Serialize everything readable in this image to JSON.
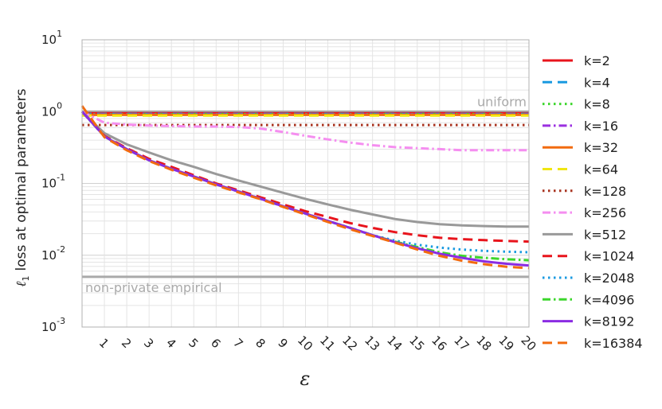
{
  "chart_data": {
    "type": "line",
    "xlabel": "ε",
    "ylabel_math": "ℓ",
    "ylabel_sub": "1",
    "ylabel_text": "loss at optimal parameters",
    "x_ticks": [
      1,
      2,
      3,
      4,
      5,
      6,
      7,
      8,
      9,
      10,
      11,
      12,
      13,
      14,
      15,
      16,
      17,
      18,
      19,
      20
    ],
    "x_range": [
      0,
      20
    ],
    "y_scale": "log",
    "y_range": [
      0.001,
      10
    ],
    "y_ticks": [
      {
        "value": 10,
        "base": "10",
        "exp": "1"
      },
      {
        "value": 1,
        "base": "10",
        "exp": "0"
      },
      {
        "value": 0.1,
        "base": "10",
        "exp": "-1"
      },
      {
        "value": 0.01,
        "base": "10",
        "exp": "-2"
      },
      {
        "value": 0.001,
        "base": "10",
        "exp": "-3"
      }
    ],
    "grid": true,
    "legend_position": "right",
    "reference_lines": [
      {
        "label": "uniform",
        "value": 1.0,
        "color": "#aaaaaa"
      },
      {
        "label": "non-private empirical",
        "value": 0.005,
        "color": "#aaaaaa"
      }
    ],
    "x": [
      0,
      1,
      2,
      3,
      4,
      5,
      6,
      7,
      8,
      9,
      10,
      11,
      12,
      13,
      14,
      15,
      16,
      17,
      18,
      19,
      20
    ],
    "series": [
      {
        "name": "k=2",
        "color": "#e8141c",
        "dash": "solid",
        "values": [
          0.95,
          0.95,
          0.95,
          0.95,
          0.95,
          0.95,
          0.95,
          0.95,
          0.95,
          0.95,
          0.95,
          0.95,
          0.95,
          0.95,
          0.95,
          0.95,
          0.95,
          0.95,
          0.95,
          0.95,
          0.95
        ]
      },
      {
        "name": "k=4",
        "color": "#1a9ae0",
        "dash": "dashed",
        "values": [
          0.93,
          0.93,
          0.93,
          0.93,
          0.93,
          0.93,
          0.93,
          0.93,
          0.93,
          0.93,
          0.93,
          0.93,
          0.93,
          0.93,
          0.93,
          0.93,
          0.93,
          0.93,
          0.93,
          0.93,
          0.93
        ]
      },
      {
        "name": "k=8",
        "color": "#3cd62c",
        "dash": "dotted",
        "values": [
          0.92,
          0.92,
          0.92,
          0.92,
          0.92,
          0.92,
          0.92,
          0.92,
          0.92,
          0.92,
          0.92,
          0.92,
          0.92,
          0.92,
          0.92,
          0.92,
          0.92,
          0.92,
          0.92,
          0.92,
          0.92
        ]
      },
      {
        "name": "k=16",
        "color": "#9b30e0",
        "dash": "dashdot",
        "values": [
          0.91,
          0.91,
          0.91,
          0.91,
          0.91,
          0.91,
          0.91,
          0.91,
          0.91,
          0.91,
          0.91,
          0.91,
          0.91,
          0.91,
          0.91,
          0.91,
          0.91,
          0.91,
          0.91,
          0.91,
          0.91
        ]
      },
      {
        "name": "k=32",
        "color": "#f26b0f",
        "dash": "solid",
        "values": [
          0.9,
          0.9,
          0.9,
          0.9,
          0.9,
          0.9,
          0.9,
          0.9,
          0.9,
          0.9,
          0.9,
          0.9,
          0.9,
          0.9,
          0.9,
          0.9,
          0.9,
          0.9,
          0.9,
          0.9,
          0.9
        ]
      },
      {
        "name": "k=64",
        "color": "#f0e612",
        "dash": "dashed",
        "values": [
          0.88,
          0.88,
          0.88,
          0.88,
          0.88,
          0.88,
          0.88,
          0.88,
          0.88,
          0.88,
          0.88,
          0.88,
          0.88,
          0.88,
          0.88,
          0.88,
          0.88,
          0.88,
          0.88,
          0.88,
          0.88
        ]
      },
      {
        "name": "k=128",
        "color": "#a8321e",
        "dash": "dotted",
        "values": [
          0.65,
          0.65,
          0.65,
          0.65,
          0.65,
          0.65,
          0.65,
          0.65,
          0.65,
          0.65,
          0.65,
          0.65,
          0.65,
          0.65,
          0.65,
          0.65,
          0.65,
          0.65,
          0.65,
          0.65,
          0.65
        ]
      },
      {
        "name": "k=256",
        "color": "#f58ef0",
        "dash": "dashdot",
        "values": [
          1.0,
          0.7,
          0.66,
          0.64,
          0.63,
          0.62,
          0.62,
          0.61,
          0.58,
          0.52,
          0.46,
          0.41,
          0.37,
          0.34,
          0.32,
          0.31,
          0.3,
          0.29,
          0.29,
          0.29,
          0.29
        ]
      },
      {
        "name": "k=512",
        "color": "#999999",
        "dash": "solid",
        "values": [
          1.0,
          0.5,
          0.35,
          0.27,
          0.21,
          0.17,
          0.135,
          0.11,
          0.09,
          0.074,
          0.061,
          0.051,
          0.043,
          0.037,
          0.032,
          0.029,
          0.027,
          0.026,
          0.0255,
          0.025,
          0.025
        ]
      },
      {
        "name": "k=1024",
        "color": "#e8141c",
        "dash": "dashed",
        "values": [
          1.0,
          0.46,
          0.31,
          0.22,
          0.17,
          0.13,
          0.1,
          0.08,
          0.064,
          0.051,
          0.041,
          0.034,
          0.028,
          0.024,
          0.021,
          0.019,
          0.0175,
          0.0167,
          0.0162,
          0.0158,
          0.0155
        ]
      },
      {
        "name": "k=2048",
        "color": "#1a9ae0",
        "dash": "dotted",
        "values": [
          1.0,
          0.45,
          0.3,
          0.21,
          0.16,
          0.125,
          0.097,
          0.077,
          0.061,
          0.048,
          0.038,
          0.03,
          0.024,
          0.019,
          0.016,
          0.014,
          0.0128,
          0.012,
          0.0115,
          0.0112,
          0.011
        ]
      },
      {
        "name": "k=4096",
        "color": "#3cd62c",
        "dash": "dashdot",
        "values": [
          1.0,
          0.45,
          0.3,
          0.21,
          0.16,
          0.125,
          0.097,
          0.077,
          0.061,
          0.048,
          0.038,
          0.03,
          0.024,
          0.019,
          0.0155,
          0.013,
          0.011,
          0.0098,
          0.0092,
          0.0088,
          0.0085
        ]
      },
      {
        "name": "k=8192",
        "color": "#8a2be2",
        "dash": "solid",
        "values": [
          1.0,
          0.45,
          0.3,
          0.21,
          0.16,
          0.125,
          0.097,
          0.077,
          0.061,
          0.048,
          0.038,
          0.03,
          0.024,
          0.019,
          0.0152,
          0.0125,
          0.0105,
          0.0092,
          0.0082,
          0.0076,
          0.0072
        ]
      },
      {
        "name": "k=16384",
        "color": "#f26b0f",
        "dash": "dashed",
        "values": [
          1.2,
          0.44,
          0.29,
          0.205,
          0.155,
          0.12,
          0.094,
          0.075,
          0.06,
          0.047,
          0.037,
          0.029,
          0.023,
          0.0185,
          0.015,
          0.012,
          0.0098,
          0.0084,
          0.0075,
          0.0069,
          0.0066
        ]
      }
    ]
  }
}
